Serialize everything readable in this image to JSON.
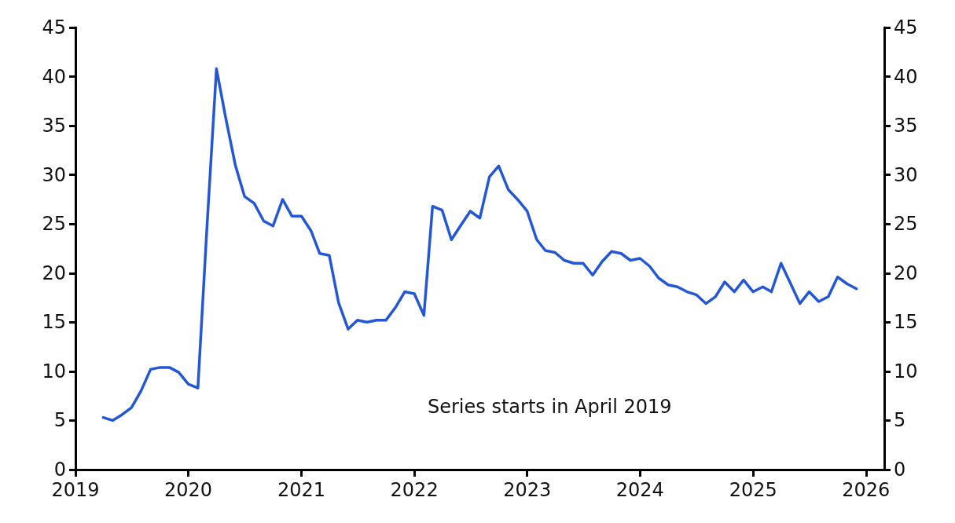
{
  "chart_data": {
    "type": "line",
    "line_style": "solid",
    "marker": "none",
    "x": [
      "2019-04",
      "2019-05",
      "2019-06",
      "2019-07",
      "2019-08",
      "2019-09",
      "2019-10",
      "2019-11",
      "2019-12",
      "2020-01",
      "2020-02",
      "2020-03",
      "2020-04",
      "2020-05",
      "2020-06",
      "2020-07",
      "2020-08",
      "2020-09",
      "2020-10",
      "2020-11",
      "2020-12",
      "2021-01",
      "2021-02",
      "2021-03",
      "2021-04",
      "2021-05",
      "2021-06",
      "2021-07",
      "2021-08",
      "2021-09",
      "2021-10",
      "2021-11",
      "2021-12",
      "2022-01",
      "2022-02",
      "2022-03",
      "2022-04",
      "2022-05",
      "2022-06",
      "2022-07",
      "2022-08",
      "2022-09",
      "2022-10",
      "2022-11",
      "2022-12",
      "2023-01",
      "2023-02",
      "2023-03",
      "2023-04",
      "2023-05",
      "2023-06",
      "2023-07",
      "2023-08",
      "2023-09",
      "2023-10",
      "2023-11",
      "2023-12",
      "2024-01",
      "2024-02",
      "2024-03",
      "2024-04",
      "2024-05",
      "2024-06",
      "2024-07",
      "2024-08",
      "2024-09",
      "2024-10",
      "2024-11",
      "2024-12",
      "2025-01",
      "2025-02",
      "2025-03",
      "2025-04",
      "2025-05",
      "2025-06",
      "2025-07",
      "2025-08",
      "2025-09",
      "2025-10",
      "2025-11",
      "2025-12"
    ],
    "series": [
      {
        "color": "#2457d6",
        "values": [
          5.3,
          5.0,
          5.6,
          6.3,
          8.0,
          10.2,
          10.4,
          10.4,
          9.9,
          8.7,
          8.3,
          24.5,
          40.8,
          35.8,
          31.0,
          27.8,
          27.1,
          25.3,
          24.8,
          27.5,
          25.8,
          25.8,
          24.3,
          22.0,
          21.8,
          17.0,
          14.3,
          15.2,
          15.0,
          15.2,
          15.2,
          16.5,
          18.1,
          17.9,
          15.7,
          26.8,
          26.4,
          23.4,
          24.9,
          26.3,
          25.6,
          29.8,
          30.9,
          28.5,
          27.5,
          26.3,
          23.4,
          22.3,
          22.1,
          21.3,
          21.0,
          21.0,
          19.8,
          21.2,
          22.2,
          22.0,
          21.3,
          21.5,
          20.7,
          19.5,
          18.8,
          18.6,
          18.1,
          17.8,
          16.9,
          17.6,
          19.1,
          18.1,
          19.3,
          18.1,
          18.6,
          18.1,
          21.0,
          19.0,
          16.9,
          18.1,
          17.1,
          17.6,
          19.6,
          18.9,
          18.4
        ]
      }
    ],
    "xlim": [
      "2019",
      "2026-03"
    ],
    "xticks": [
      "2019",
      "2020",
      "2021",
      "2022",
      "2023",
      "2024",
      "2025",
      "2026"
    ],
    "ylim": [
      0,
      45
    ],
    "yticks": [
      0,
      5,
      10,
      15,
      20,
      25,
      30,
      35,
      40,
      45
    ],
    "y2lim": [
      0,
      45
    ],
    "y2ticks": [
      0,
      5,
      10,
      15,
      20,
      25,
      30,
      35,
      40,
      45
    ],
    "annotations": [
      "Series starts in April 2019"
    ]
  }
}
